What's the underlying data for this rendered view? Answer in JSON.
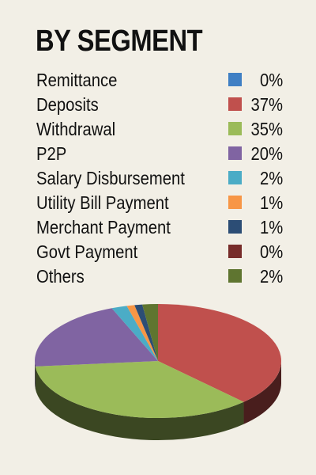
{
  "chart_data": {
    "type": "pie",
    "title": "BY SEGMENT",
    "legend_placement": "top",
    "slices": [
      {
        "label": "Remittance",
        "value": 0,
        "display": "0%",
        "color": "#3f7fc4"
      },
      {
        "label": "Deposits",
        "value": 37,
        "display": "37%",
        "color": "#c0504d"
      },
      {
        "label": "Withdrawal",
        "value": 35,
        "display": "35%",
        "color": "#9bbb59"
      },
      {
        "label": "P2P",
        "value": 20,
        "display": "20%",
        "color": "#8064a2"
      },
      {
        "label": "Salary Disbursement",
        "value": 2,
        "display": "2%",
        "color": "#4bacc6"
      },
      {
        "label": "Utility Bill Payment",
        "value": 1,
        "display": "1%",
        "color": "#f79646"
      },
      {
        "label": "Merchant Payment",
        "value": 1,
        "display": "1%",
        "color": "#2c4d75"
      },
      {
        "label": "Govt Payment",
        "value": 0,
        "display": "0%",
        "color": "#772c2a"
      },
      {
        "label": "Others",
        "value": 2,
        "display": "2%",
        "color": "#5f7530"
      }
    ]
  }
}
